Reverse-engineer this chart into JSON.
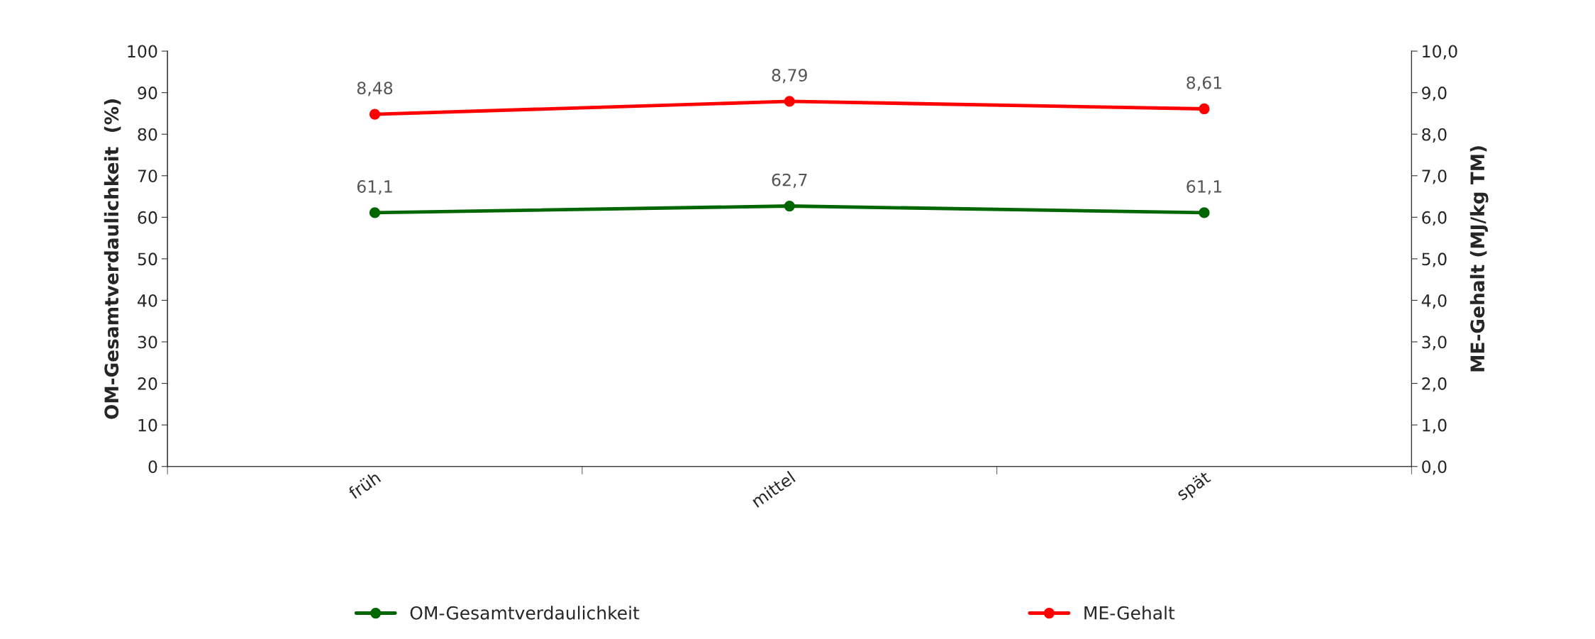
{
  "chart_data": {
    "type": "line",
    "ylabel": "OM-Gesamtverdaulichkeit  (%)",
    "y2label": "ME-Gehalt (MJ/kg TM)",
    "categories": [
      "früh",
      "mittel",
      "spät"
    ],
    "series": [
      {
        "name": "OM-Gesamtverdaulichkeit",
        "color": "#006600",
        "values": [
          61.1,
          62.7,
          61.1
        ],
        "value_labels": [
          "61,1",
          "62,7",
          "61,1"
        ]
      },
      {
        "name": "ME-Gehalt",
        "color": "#ff0000",
        "axis": "y2",
        "values": [
          8.48,
          8.79,
          8.61
        ],
        "value_labels": [
          "8,48",
          "8,79",
          "8,61"
        ]
      }
    ],
    "ylim": [
      0,
      100
    ],
    "yticks": [
      0,
      10,
      20,
      30,
      40,
      50,
      60,
      70,
      80,
      90,
      100
    ],
    "y2lim": [
      0,
      10
    ],
    "y2ticks": [
      {
        "value": 0,
        "label": "0,0"
      },
      {
        "value": 1,
        "label": "1,0"
      },
      {
        "value": 2,
        "label": "2,0"
      },
      {
        "value": 3,
        "label": "3,0"
      },
      {
        "value": 4,
        "label": "4,0"
      },
      {
        "value": 5,
        "label": "5,0"
      },
      {
        "value": 6,
        "label": "6,0"
      },
      {
        "value": 7,
        "label": "7,0"
      },
      {
        "value": 8,
        "label": "8,0"
      },
      {
        "value": 9,
        "label": "9,0"
      },
      {
        "value": 10,
        "label": "10,0"
      }
    ],
    "marker": "circle",
    "line_style": "solid",
    "grid": false,
    "legend": "bottom"
  }
}
